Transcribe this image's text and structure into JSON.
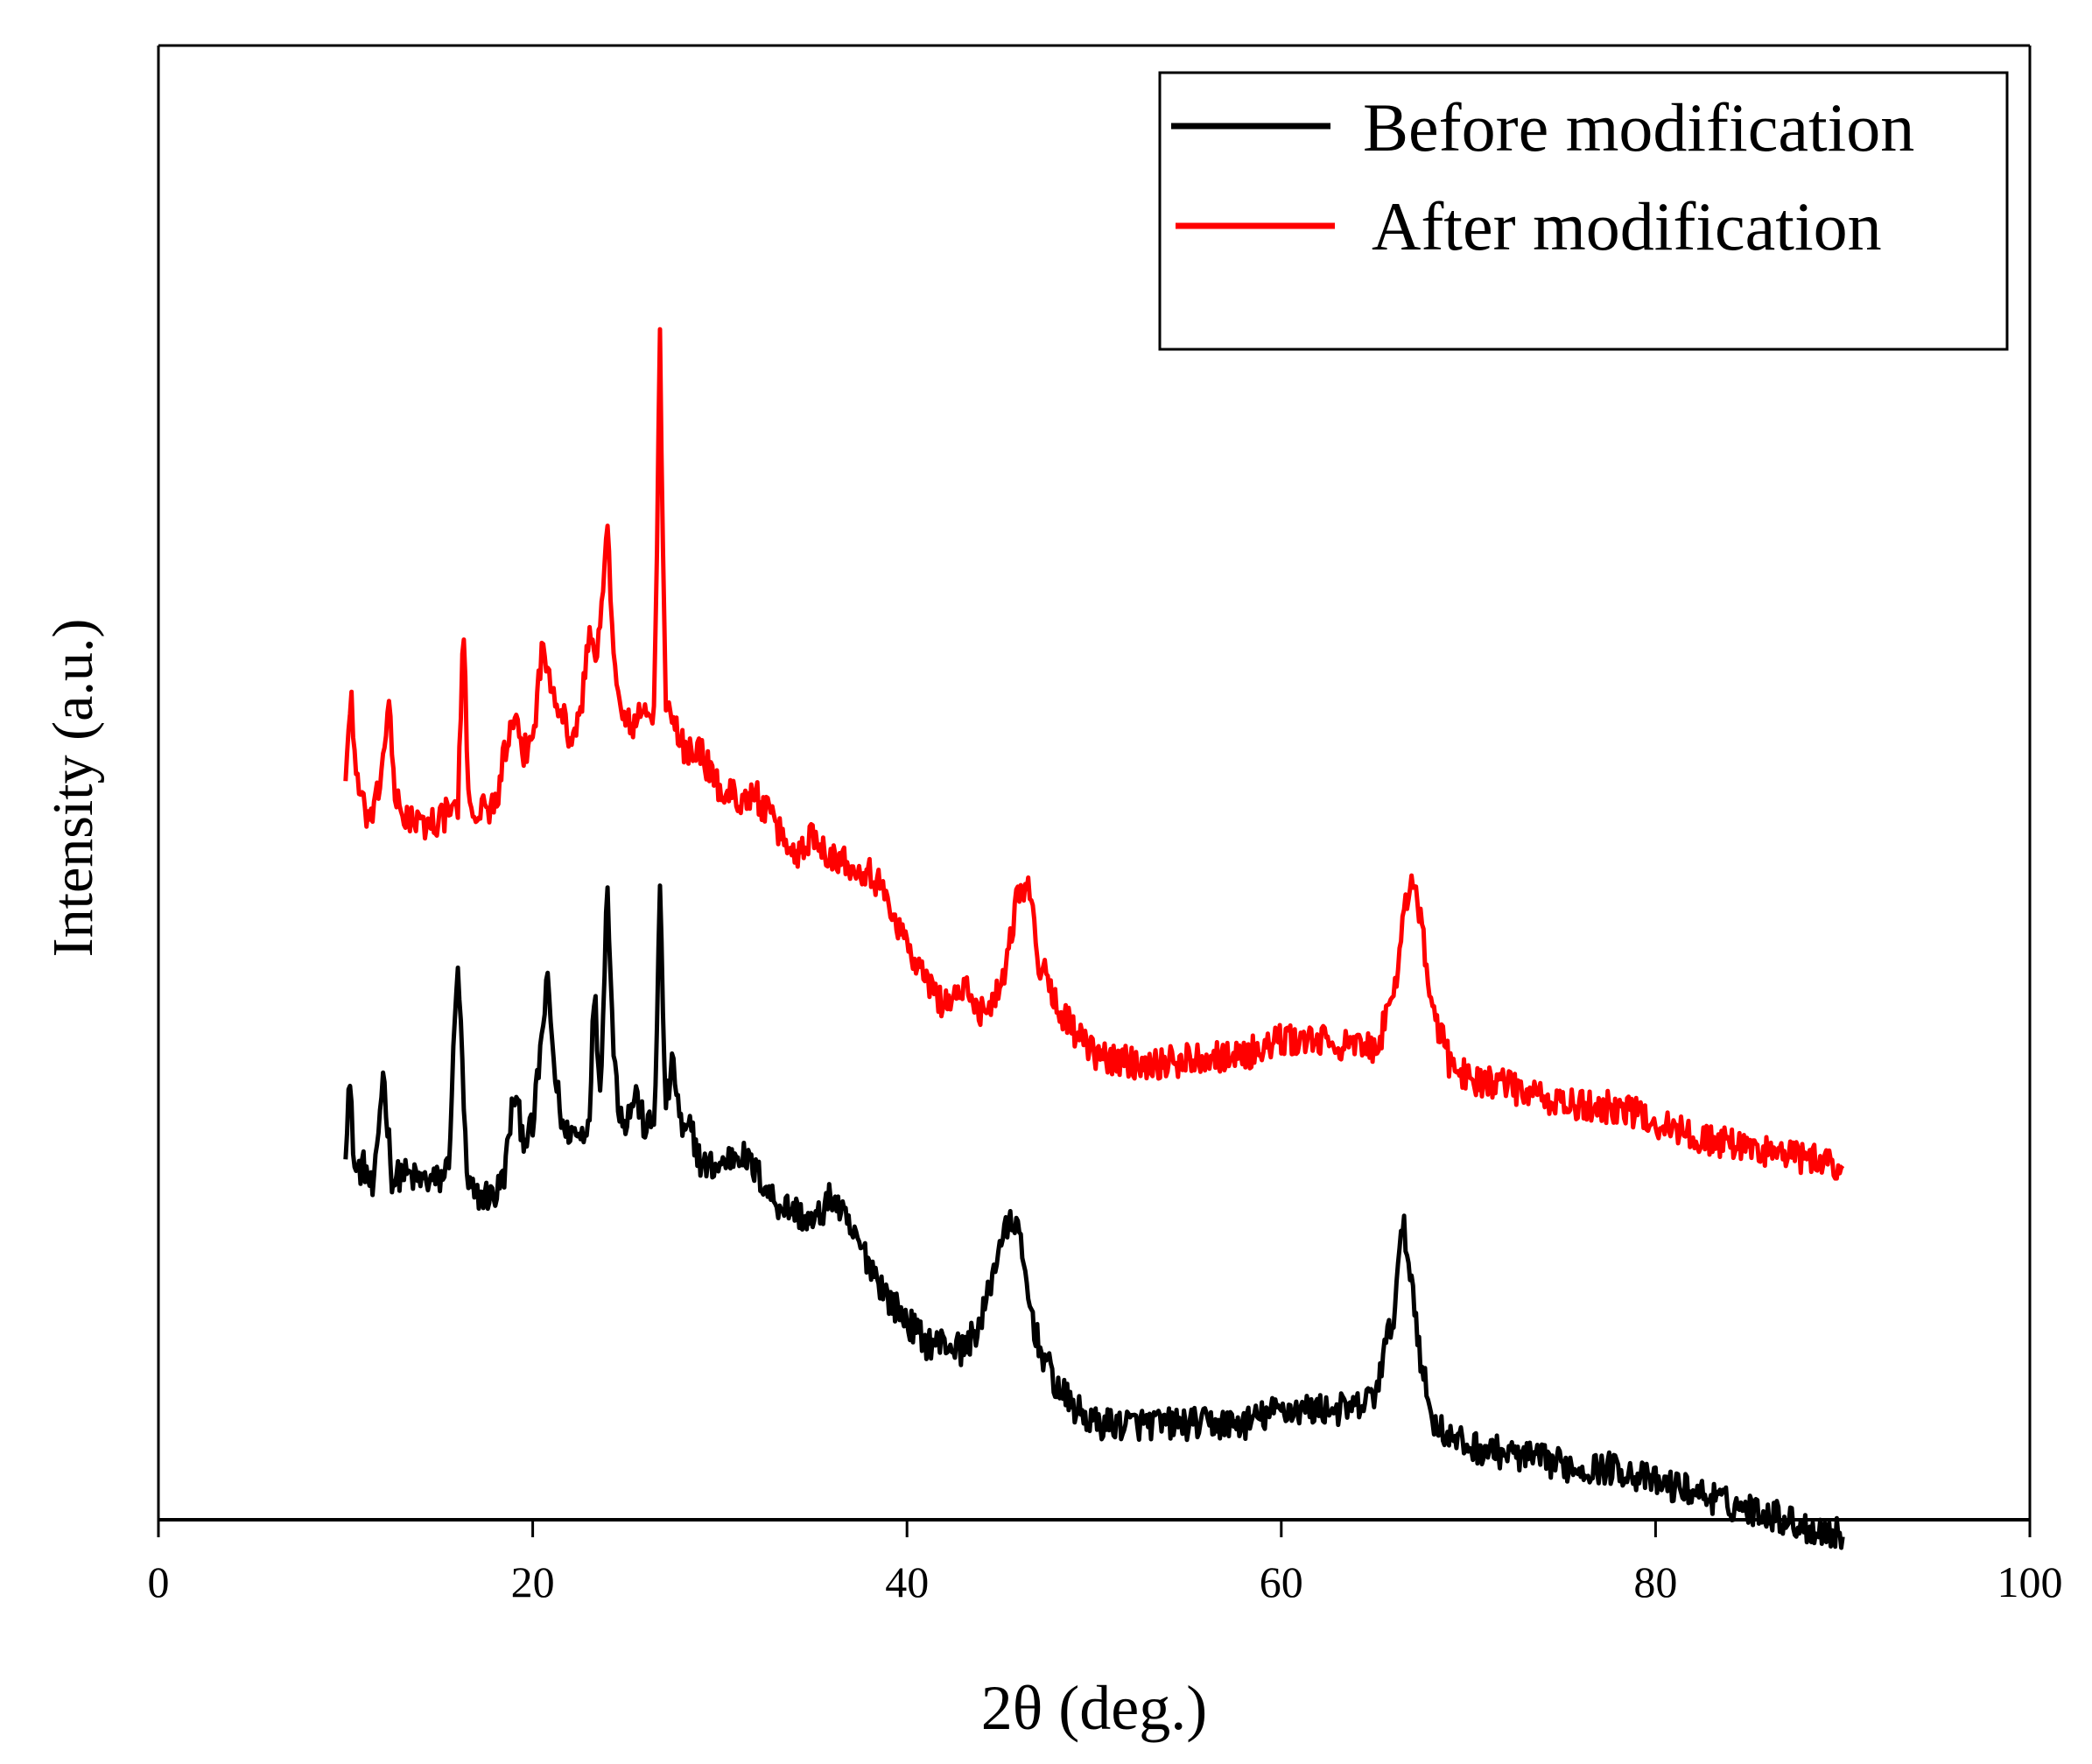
{
  "chart_data": {
    "type": "line",
    "title": "",
    "xlabel": "2θ (deg.)",
    "ylabel": "Intensity (a.u.)",
    "xlim": [
      0,
      100
    ],
    "ylim": [
      0,
      100
    ],
    "x_ticks": [
      "0",
      "20",
      "40",
      "60",
      "80",
      "100"
    ],
    "y_ticks_shown": false,
    "legend": {
      "placement": "top-right",
      "entries": [
        {
          "name": "Before modification",
          "color": "#000000"
        },
        {
          "name": "After modification",
          "color": "#ff0000"
        }
      ]
    },
    "series": [
      {
        "name": "Before modification",
        "color": "#000000",
        "x": [
          10,
          10.2,
          10.5,
          11,
          11.5,
          12,
          12.5,
          13,
          14,
          15,
          15.5,
          16,
          16.5,
          17,
          18,
          18.5,
          19,
          19.5,
          20,
          20.5,
          20.8,
          21.2,
          21.7,
          22,
          22.5,
          23,
          23.3,
          23.6,
          24,
          24.3,
          24.6,
          25,
          25.5,
          26,
          26.5,
          26.8,
          27.1,
          27.5,
          28,
          28.5,
          29,
          30,
          31,
          32,
          33,
          34,
          35,
          36,
          37,
          38,
          39,
          40,
          41,
          42,
          43,
          44,
          45,
          45.8,
          46.5,
          47,
          48,
          49,
          50,
          52,
          54,
          56,
          58,
          60,
          62,
          64,
          65,
          66,
          66.5,
          67,
          67.5,
          68,
          69,
          70,
          72,
          74,
          76,
          78,
          80,
          82,
          84,
          86,
          88,
          90
        ],
        "values": [
          25.5,
          30,
          23.5,
          24,
          22,
          30.5,
          23,
          23.5,
          23,
          23,
          24,
          38,
          22.5,
          22,
          22,
          23.5,
          29,
          26,
          26.5,
          33,
          36.5,
          30,
          26,
          26.5,
          26,
          27,
          36,
          29,
          43.5,
          32,
          28,
          27,
          29,
          26.5,
          27,
          42.5,
          28,
          31,
          26,
          26.5,
          24,
          24,
          25,
          23.5,
          21.5,
          21,
          20,
          22,
          19.5,
          17.5,
          15,
          13.5,
          12,
          12,
          11.5,
          13.5,
          19,
          20.5,
          15,
          12,
          9,
          7.5,
          6.5,
          6.5,
          6.5,
          6.5,
          6.5,
          7.5,
          7.5,
          7.5,
          8.5,
          14,
          20,
          16,
          10.5,
          7,
          5.5,
          5,
          4.5,
          4,
          3.5,
          3.5,
          2.5,
          2,
          1,
          0.5,
          -0.5,
          -1
        ]
      },
      {
        "name": "After modification",
        "color": "#ff0000",
        "x": [
          10,
          10.3,
          10.6,
          11,
          11.5,
          12,
          12.3,
          12.6,
          13,
          14,
          15,
          15.5,
          16,
          16.3,
          16.6,
          17,
          18,
          18.5,
          19,
          19.5,
          20,
          20.5,
          21,
          21.5,
          22,
          22.5,
          23,
          23.5,
          24,
          24.3,
          24.6,
          25,
          25.5,
          26,
          26.5,
          26.8,
          27.1,
          27.5,
          28,
          29,
          30,
          31,
          32,
          33,
          34,
          35,
          36,
          37,
          38,
          39,
          40,
          41,
          42,
          43,
          44,
          45,
          46,
          46.5,
          47,
          48,
          49,
          50,
          52,
          54,
          56,
          58,
          60,
          62,
          64,
          65,
          66,
          66.5,
          67,
          67.5,
          68,
          69,
          70,
          72,
          74,
          76,
          78,
          80,
          82,
          84,
          86,
          88,
          90
        ],
        "values": [
          50.5,
          56,
          50,
          48,
          47.5,
          51.5,
          56,
          49,
          48,
          47,
          47.5,
          48,
          48.5,
          60,
          48.5,
          48,
          48.5,
          52,
          54,
          52,
          53,
          59,
          57,
          55,
          53,
          54,
          60,
          59,
          67,
          60,
          55,
          54,
          54,
          55,
          54.5,
          80,
          55,
          54,
          52.5,
          52,
          49.5,
          49,
          49,
          47,
          45,
          46.5,
          45,
          44.5,
          44,
          42,
          39,
          36.5,
          35,
          36,
          34.5,
          36,
          43,
          43,
          38,
          35,
          33,
          31.5,
          31,
          31,
          31.5,
          31.5,
          32.5,
          32.5,
          32,
          32,
          35,
          41,
          44,
          40,
          35,
          31,
          30,
          29.5,
          28.5,
          28,
          28,
          27,
          26,
          25.5,
          25,
          24.5,
          24
        ]
      }
    ]
  }
}
